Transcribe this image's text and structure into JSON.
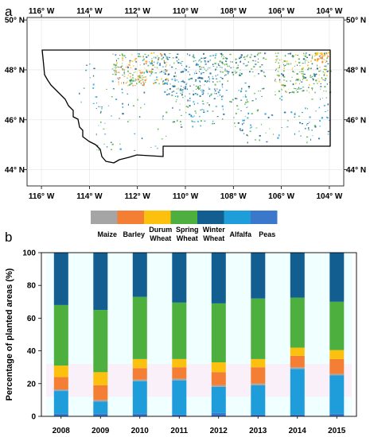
{
  "figure": {
    "panel_a_label": "a",
    "panel_b_label": "b"
  },
  "map": {
    "lon_ticks": [
      "116° W",
      "114° W",
      "112° W",
      "110° W",
      "108° W",
      "106° W",
      "104° W"
    ],
    "lon_values": [
      -116,
      -114,
      -112,
      -110,
      -108,
      -106,
      -104
    ],
    "lat_ticks": [
      "50° N",
      "48° N",
      "46° N",
      "44° N"
    ],
    "lat_values": [
      50,
      48,
      46,
      44
    ],
    "lon_range": [
      -116.6,
      -103.4
    ],
    "lat_range": [
      43.35,
      50.1
    ],
    "grid": true,
    "region_outline_color": "#000000"
  },
  "legend": {
    "items": [
      {
        "lines": [
          "Maize"
        ],
        "color": "#a5a5a5"
      },
      {
        "lines": [
          "Barley"
        ],
        "color": "#f47f34"
      },
      {
        "lines": [
          "Durum",
          "Wheat"
        ],
        "color": "#fcc10e"
      },
      {
        "lines": [
          "Spring",
          "Wheat"
        ],
        "color": "#4caf3e"
      },
      {
        "lines": [
          "Winter",
          "Wheat"
        ],
        "color": "#125e91"
      },
      {
        "lines": [
          "Alfalfa"
        ],
        "color": "#1f9ddb"
      },
      {
        "lines": [
          "Peas"
        ],
        "color": "#3b78cc"
      }
    ]
  },
  "chart_data": {
    "type": "bar",
    "stacked": true,
    "categories": [
      "2008",
      "2009",
      "2010",
      "2011",
      "2012",
      "2013",
      "2014",
      "2015"
    ],
    "ylabel": "Percentage of planted areas (%)",
    "xlabel": "",
    "ylim": [
      0,
      100
    ],
    "yticks": [
      "0",
      "20",
      "40",
      "60",
      "80",
      "100"
    ],
    "ytick_values": [
      0,
      20,
      40,
      60,
      80,
      100
    ],
    "grid": false,
    "series": [
      {
        "name": "Peas",
        "color": "#3b78cc",
        "values": [
          1.5,
          1.5,
          1.5,
          1,
          2,
          1,
          1,
          1.5
        ]
      },
      {
        "name": "Alfalfa",
        "color": "#1f9ddb",
        "values": [
          14,
          7.5,
          20,
          21,
          16,
          18,
          28,
          23.5
        ]
      },
      {
        "name": "Maize",
        "color": "#a5a5a5",
        "values": [
          1,
          1,
          1,
          1,
          1,
          1,
          1,
          1
        ]
      },
      {
        "name": "Barley",
        "color": "#f47f34",
        "values": [
          7.5,
          9,
          7,
          7,
          8,
          10,
          7,
          9
        ]
      },
      {
        "name": "Durum Wheat",
        "color": "#fcc10e",
        "values": [
          7,
          8,
          5.5,
          5,
          6,
          5,
          5,
          5.5
        ]
      },
      {
        "name": "Spring Wheat",
        "color": "#4caf3e",
        "values": [
          37,
          38,
          38,
          34.5,
          36,
          37,
          30.5,
          29.5
        ]
      },
      {
        "name": "Winter Wheat",
        "color": "#125e91",
        "values": [
          32,
          35,
          27,
          30.5,
          31,
          28,
          27.5,
          30
        ]
      }
    ]
  }
}
